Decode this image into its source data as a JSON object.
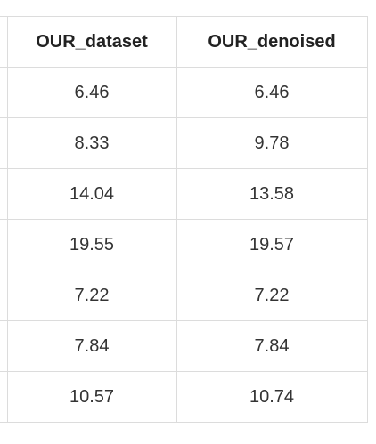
{
  "table": {
    "columns": [
      "",
      "OUR_dataset",
      "OUR_denoised"
    ],
    "rows": [
      [
        "",
        "6.46",
        "6.46"
      ],
      [
        "",
        "8.33",
        "9.78"
      ],
      [
        "",
        "14.04",
        "13.58"
      ],
      [
        "",
        "19.55",
        "19.57"
      ],
      [
        "",
        "7.22",
        "7.22"
      ],
      [
        "",
        "7.84",
        "7.84"
      ],
      [
        "",
        "10.57",
        "10.74"
      ]
    ]
  }
}
